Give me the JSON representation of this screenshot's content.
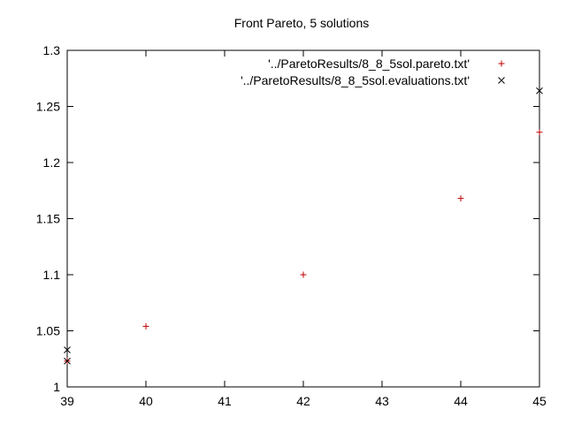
{
  "chart_data": {
    "type": "scatter",
    "title": "Front Pareto, 5 solutions",
    "xlabel": "",
    "ylabel": "",
    "xlim": [
      39,
      45
    ],
    "ylim": [
      1,
      1.3
    ],
    "x_ticks": [
      "39",
      "40",
      "41",
      "42",
      "43",
      "44",
      "45"
    ],
    "y_ticks": [
      "1",
      "1.05",
      "1.1",
      "1.15",
      "1.2",
      "1.25",
      "1.3"
    ],
    "grid": false,
    "legend_position": "top-right",
    "series": [
      {
        "name": "'../ParetoResults/8_8_5sol.pareto.txt'",
        "marker": "plus",
        "color": "#c00000",
        "points": [
          {
            "x": 39,
            "y": 1.023
          },
          {
            "x": 40,
            "y": 1.054
          },
          {
            "x": 42,
            "y": 1.1
          },
          {
            "x": 44,
            "y": 1.168
          },
          {
            "x": 45,
            "y": 1.227
          }
        ]
      },
      {
        "name": "'../ParetoResults/8_8_5sol.evaluations.txt'",
        "marker": "cross",
        "color": "#000000",
        "points": [
          {
            "x": 39,
            "y": 1.033
          },
          {
            "x": 39,
            "y": 1.023
          },
          {
            "x": 45,
            "y": 1.264
          }
        ]
      }
    ]
  }
}
